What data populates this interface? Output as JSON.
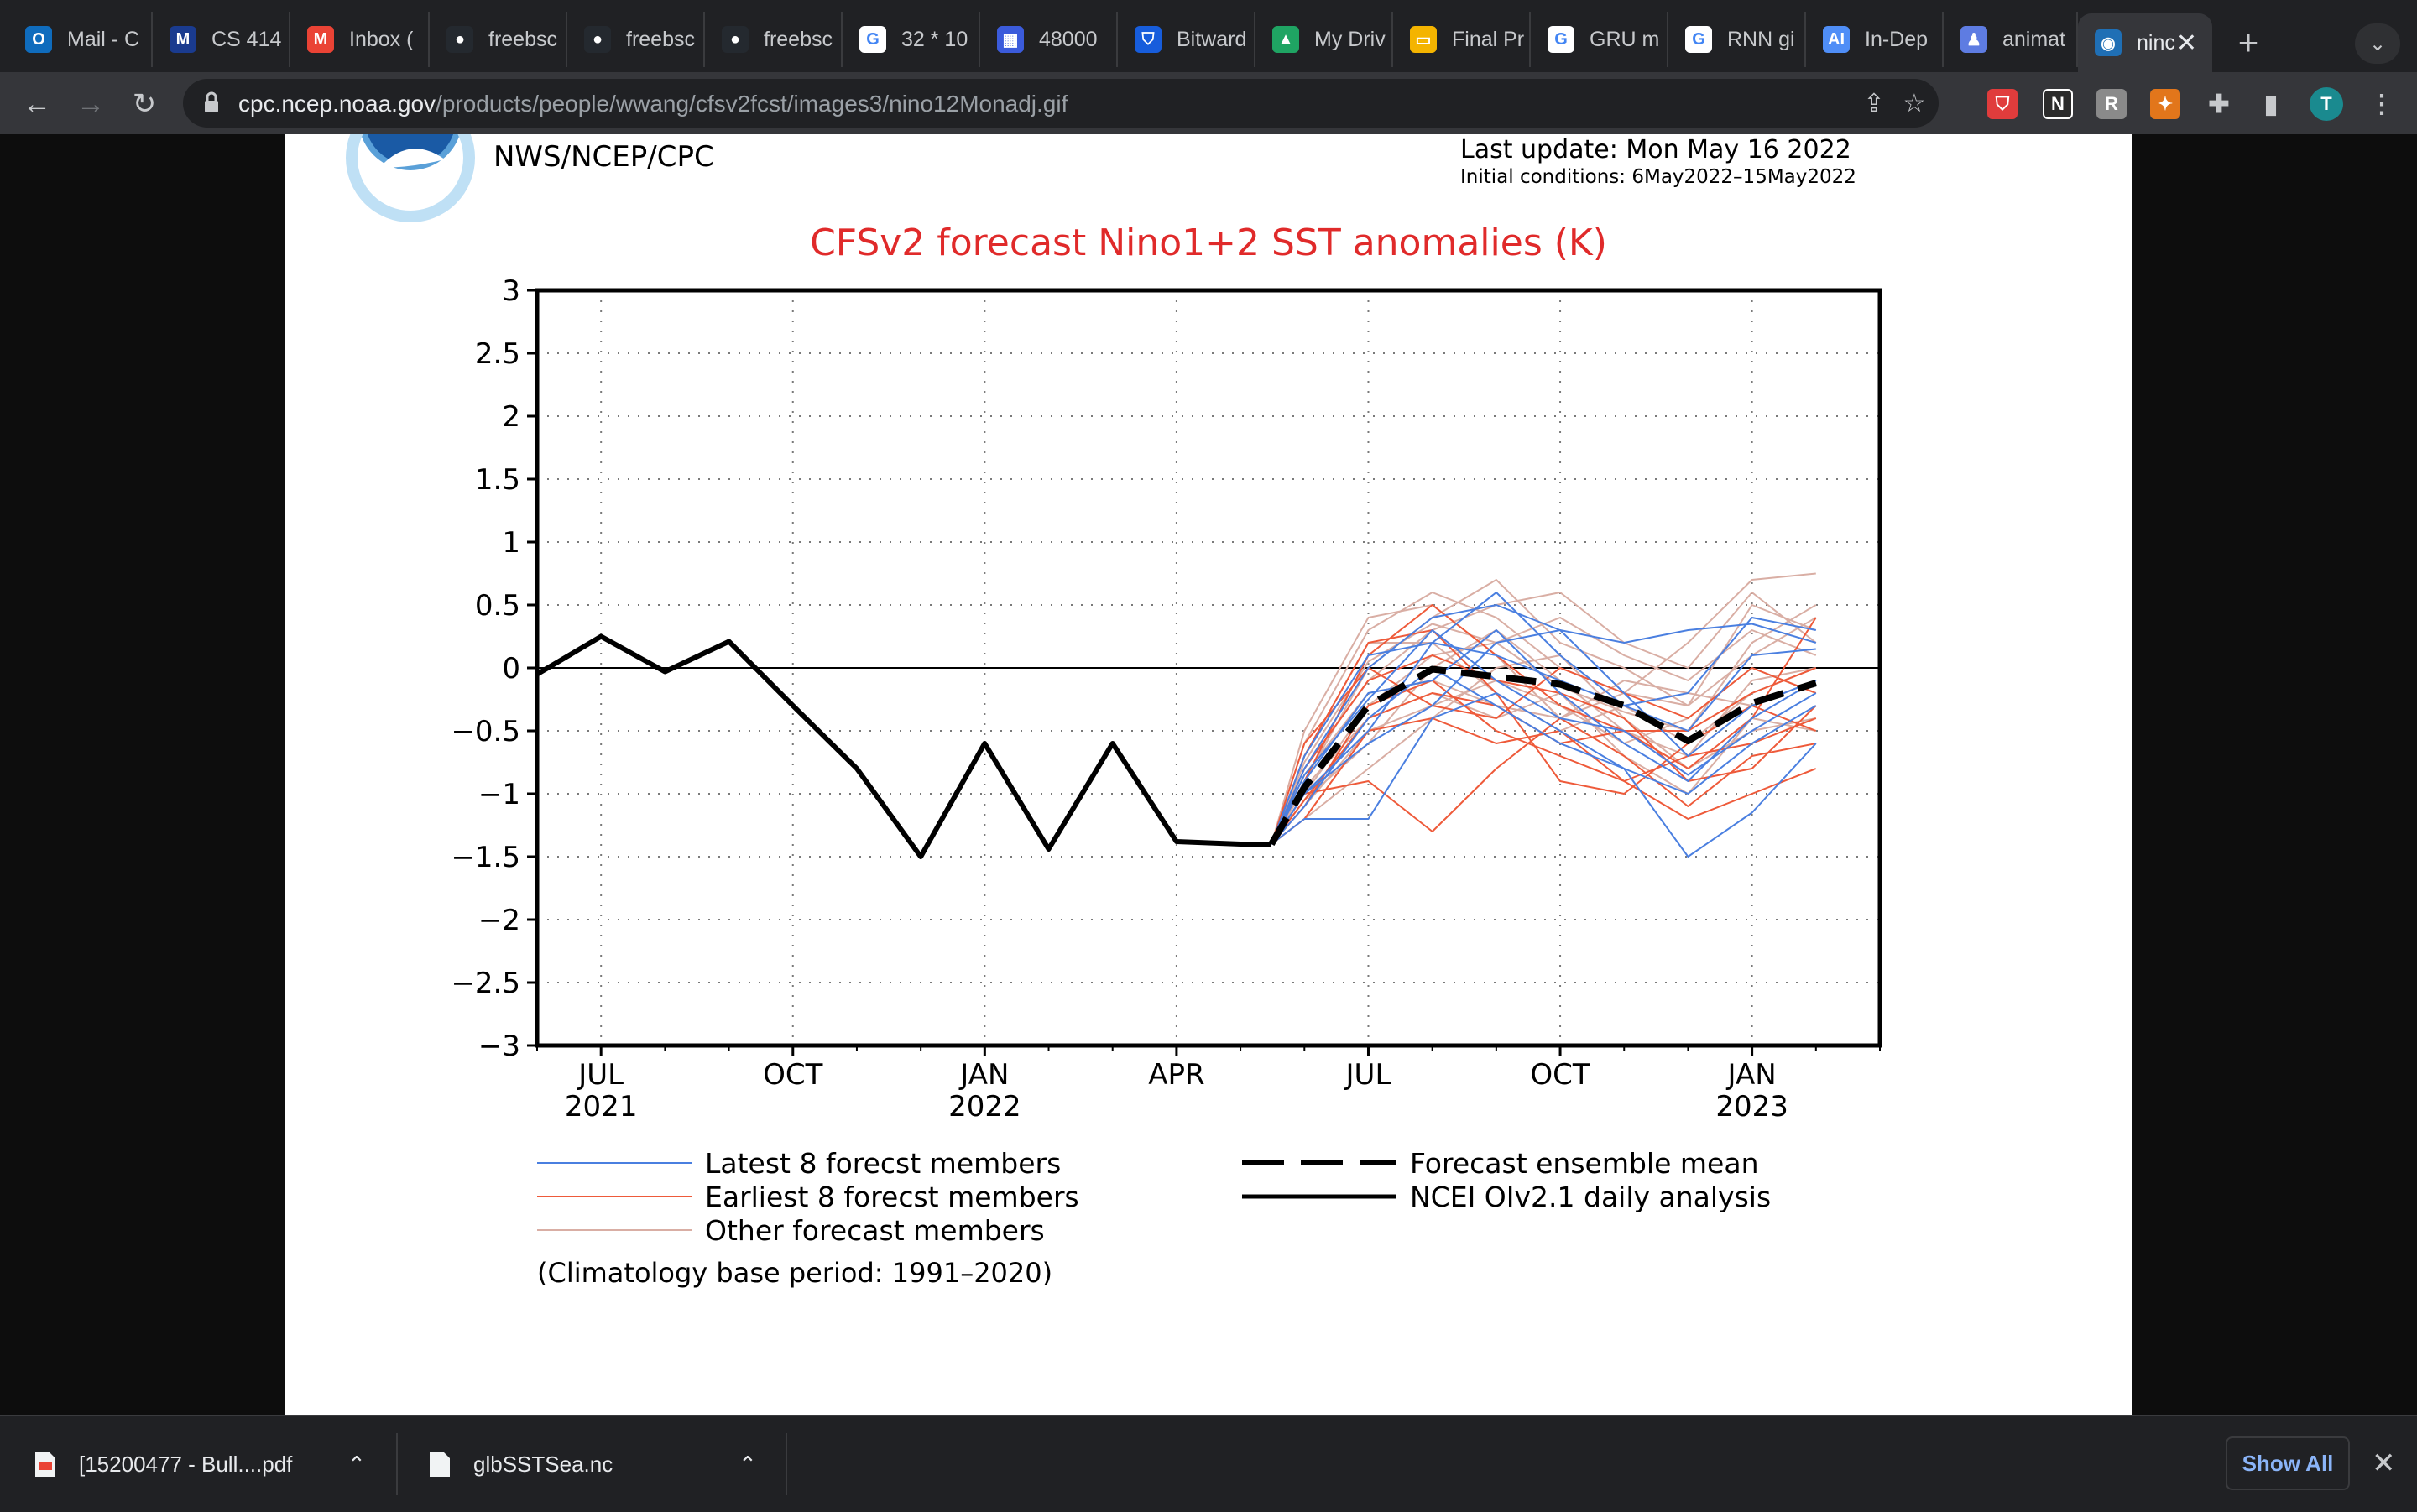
{
  "tabs": [
    {
      "label": "Mail - C",
      "icon": "outlook-icon",
      "color": "#0f6cbd",
      "glyph": "O"
    },
    {
      "label": "CS 414",
      "icon": "mathworks-icon",
      "color": "#1a3b8f",
      "glyph": "M"
    },
    {
      "label": "Inbox (",
      "icon": "gmail-icon",
      "color": "#ea4335",
      "glyph": "M"
    },
    {
      "label": "freebsc",
      "icon": "github-icon",
      "color": "#24292f",
      "glyph": "●"
    },
    {
      "label": "freebsc",
      "icon": "github-icon",
      "color": "#24292f",
      "glyph": "●"
    },
    {
      "label": "freebsc",
      "icon": "github-icon",
      "color": "#24292f",
      "glyph": "●"
    },
    {
      "label": "32 * 10",
      "icon": "google-icon",
      "color": "#ffffff",
      "glyph": "G"
    },
    {
      "label": "48000",
      "icon": "calculator-icon",
      "color": "#3b5bdb",
      "glyph": "▦"
    },
    {
      "label": "Bitward",
      "icon": "bitwarden-icon",
      "color": "#175ddc",
      "glyph": "⛉"
    },
    {
      "label": "My Driv",
      "icon": "google-drive-icon",
      "color": "#1fa463",
      "glyph": "▲"
    },
    {
      "label": "Final Pr",
      "icon": "google-slides-icon",
      "color": "#f4b400",
      "glyph": "▭"
    },
    {
      "label": "GRU m",
      "icon": "google-icon",
      "color": "#ffffff",
      "glyph": "G"
    },
    {
      "label": "RNN gi",
      "icon": "google-icon",
      "color": "#ffffff",
      "glyph": "G"
    },
    {
      "label": "In-Dep",
      "icon": "ai-icon",
      "color": "#4f8ef7",
      "glyph": "AI"
    },
    {
      "label": "animat",
      "icon": "people-icon",
      "color": "#5e7ce2",
      "glyph": "♟"
    },
    {
      "label": "ninc",
      "icon": "noaa-icon",
      "color": "#1f6fb5",
      "glyph": "◉",
      "active": true
    }
  ],
  "address": {
    "host": "cpc.ncep.noaa.gov",
    "path": "/products/people/wwang/cfsv2fcst/images3/nino12Monadj.gif"
  },
  "profile_initial": "T",
  "downloads": [
    {
      "name": "[15200477 - Bull....pdf",
      "icon": "pdf-file-icon"
    },
    {
      "name": "glbSSTSea.nc",
      "icon": "file-icon"
    }
  ],
  "show_all_label": "Show All",
  "figure": {
    "agency": "NWS/NCEP/CPC",
    "last_update": "Last update: Mon May 16 2022",
    "initial_conditions": "Initial conditions: 6May2022–15May2022",
    "footnote": "(Climatology base period: 1991–2020)"
  },
  "chart_data": {
    "type": "line",
    "title": "CFSv2 forecast Nino1+2 SST anomalies (K)",
    "xlabel": "",
    "ylabel": "",
    "ylim": [
      -3,
      3
    ],
    "yticks": [
      3,
      2.5,
      2,
      1.5,
      1,
      0.5,
      0,
      -0.5,
      -1,
      -1.5,
      -2,
      -2.5,
      -3
    ],
    "ytick_labels": [
      "3",
      "2.5",
      "2",
      "1.5",
      "1",
      "0.5",
      "0",
      "−0.5",
      "−1",
      "−1.5",
      "−2",
      "−2.5",
      "−3"
    ],
    "xlim": [
      "2021-06",
      "2023-03"
    ],
    "xticks": [
      {
        "month": "2021-07",
        "label": "JUL",
        "year": "2021"
      },
      {
        "month": "2021-10",
        "label": "OCT",
        "year": ""
      },
      {
        "month": "2022-01",
        "label": "JAN",
        "year": "2022"
      },
      {
        "month": "2022-04",
        "label": "APR",
        "year": ""
      },
      {
        "month": "2022-07",
        "label": "JUL",
        "year": ""
      },
      {
        "month": "2022-10",
        "label": "OCT",
        "year": ""
      },
      {
        "month": "2023-01",
        "label": "JAN",
        "year": "2023"
      }
    ],
    "grid": true,
    "zero_line": true,
    "legend_position": "bottom",
    "legend": [
      {
        "label": "Latest 8 forecst members",
        "color": "#4a7fe0",
        "style": "thin"
      },
      {
        "label": "Earliest 8 forecst members",
        "color": "#ee5a3a",
        "style": "thin"
      },
      {
        "label": "Other forecast members",
        "color": "#d9aea4",
        "style": "thin"
      },
      {
        "label": "Forecast ensemble mean",
        "color": "#000000",
        "style": "dashed"
      },
      {
        "label": "NCEI OIv2.1 daily analysis",
        "color": "#000000",
        "style": "solid"
      }
    ],
    "series": [
      {
        "name": "NCEI OIv2.1 daily analysis",
        "x": [
          "2021-06",
          "2021-07",
          "2021-08",
          "2021-09",
          "2021-10",
          "2021-11",
          "2021-12",
          "2022-01",
          "2022-02",
          "2022-03",
          "2022-04",
          "2022-05",
          "2022-05-16"
        ],
        "y": [
          -0.05,
          0.25,
          -0.03,
          0.21,
          -0.3,
          -0.8,
          -1.5,
          -0.6,
          -1.44,
          -0.6,
          -1.38,
          -1.4,
          -1.4
        ]
      },
      {
        "name": "Forecast ensemble mean",
        "x": [
          "2022-05-16",
          "2022-06",
          "2022-07",
          "2022-08",
          "2022-09",
          "2022-10",
          "2022-11",
          "2022-12",
          "2023-01",
          "2023-02"
        ],
        "y": [
          -1.4,
          -0.95,
          -0.3,
          -0.01,
          -0.07,
          -0.13,
          -0.3,
          -0.58,
          -0.28,
          -0.12
        ]
      },
      {
        "name": "Latest 8 forecst members",
        "x": [
          "2022-05-16",
          "2022-06",
          "2022-07",
          "2022-08",
          "2022-09",
          "2022-10",
          "2022-11",
          "2022-12",
          "2023-01",
          "2023-02"
        ],
        "members": [
          [
            -1.4,
            -0.8,
            0.0,
            0.4,
            0.5,
            0.3,
            0.2,
            0.3,
            0.35,
            0.2
          ],
          [
            -1.4,
            -1.0,
            -0.5,
            0.2,
            0.6,
            0.1,
            -0.3,
            -0.5,
            0.1,
            0.15
          ],
          [
            -1.4,
            -1.2,
            -1.2,
            -0.4,
            -0.2,
            -0.5,
            -0.8,
            -1.5,
            -1.15,
            -0.6
          ],
          [
            -1.4,
            -0.9,
            -0.2,
            -0.1,
            0.3,
            -0.2,
            -0.6,
            -0.9,
            -0.4,
            -0.1
          ],
          [
            -1.4,
            -1.1,
            -0.4,
            0.0,
            -0.3,
            -0.6,
            -0.8,
            -1.0,
            -0.6,
            -0.3
          ],
          [
            -1.4,
            -0.7,
            0.1,
            0.2,
            0.1,
            -0.1,
            -0.3,
            -0.2,
            0.4,
            0.3
          ],
          [
            -1.4,
            -1.0,
            -0.6,
            -0.3,
            0.2,
            0.3,
            -0.2,
            -0.7,
            -0.3,
            -0.1
          ],
          [
            -1.4,
            -0.85,
            -0.25,
            0.3,
            -0.1,
            -0.4,
            -0.5,
            -0.85,
            -0.5,
            -0.2
          ]
        ]
      },
      {
        "name": "Earliest 8 forecst members",
        "x": [
          "2022-05-16",
          "2022-06",
          "2022-07",
          "2022-08",
          "2022-09",
          "2022-10",
          "2022-11",
          "2022-12",
          "2023-01",
          "2023-02"
        ],
        "members": [
          [
            -1.4,
            -0.9,
            0.1,
            0.5,
            0.1,
            -0.3,
            -0.5,
            -0.8,
            -0.4,
            0.4
          ],
          [
            -1.4,
            -1.1,
            -0.3,
            -0.1,
            -0.5,
            -0.7,
            -0.9,
            -1.2,
            -1.0,
            -0.8
          ],
          [
            -1.4,
            -0.7,
            0.2,
            0.3,
            -0.2,
            -0.9,
            -1.0,
            -0.6,
            -0.3,
            -0.5
          ],
          [
            -1.4,
            -1.0,
            -0.9,
            -1.3,
            -0.8,
            -0.4,
            -0.7,
            -1.1,
            -0.7,
            -0.6
          ],
          [
            -1.4,
            -0.6,
            0.0,
            -0.3,
            -0.4,
            0.0,
            -0.2,
            -0.4,
            0.0,
            -0.2
          ],
          [
            -1.4,
            -1.2,
            -0.5,
            -0.4,
            -0.6,
            -0.5,
            -0.9,
            -0.7,
            -0.6,
            -0.4
          ],
          [
            -1.4,
            -0.8,
            -0.1,
            0.1,
            -0.1,
            -0.2,
            -0.4,
            -0.9,
            -0.8,
            -0.3
          ],
          [
            -1.4,
            -1.05,
            -0.4,
            -0.2,
            -0.3,
            -0.6,
            -0.5,
            -0.5,
            -0.2,
            0.0
          ]
        ]
      },
      {
        "name": "Other forecast members",
        "x": [
          "2022-05-16",
          "2022-06",
          "2022-07",
          "2022-08",
          "2022-09",
          "2022-10",
          "2022-11",
          "2022-12",
          "2023-01",
          "2023-02"
        ],
        "members": [
          [
            -1.4,
            -0.6,
            0.3,
            0.6,
            0.4,
            0.0,
            -0.2,
            0.2,
            0.7,
            0.75
          ],
          [
            -1.4,
            -0.9,
            0.0,
            0.4,
            0.7,
            0.2,
            0.0,
            -0.3,
            0.5,
            0.3
          ],
          [
            -1.4,
            -1.0,
            -0.3,
            0.1,
            0.2,
            0.4,
            0.1,
            -0.1,
            0.3,
            0.1
          ],
          [
            -1.4,
            -1.1,
            -0.5,
            -0.3,
            -0.1,
            -0.3,
            -0.6,
            -0.4,
            0.0,
            -0.2
          ],
          [
            -1.4,
            -0.7,
            0.2,
            0.2,
            -0.2,
            -0.5,
            -0.3,
            -0.6,
            -0.2,
            0.0
          ],
          [
            -1.4,
            -1.2,
            -0.8,
            -0.4,
            0.0,
            0.1,
            -0.4,
            -0.8,
            -0.5,
            -0.4
          ],
          [
            -1.4,
            -0.8,
            -0.1,
            0.3,
            0.5,
            0.6,
            0.2,
            0.0,
            0.6,
            0.2
          ],
          [
            -1.4,
            -0.95,
            -0.4,
            -0.2,
            -0.4,
            -0.2,
            -0.7,
            -1.0,
            -0.4,
            -0.5
          ],
          [
            -1.4,
            -0.5,
            0.4,
            0.5,
            0.1,
            -0.4,
            -0.2,
            -0.3,
            0.1,
            0.4
          ],
          [
            -1.4,
            -1.05,
            -0.6,
            0.0,
            0.3,
            -0.1,
            -0.5,
            -0.7,
            -0.1,
            0.0
          ],
          [
            -1.4,
            -0.75,
            0.05,
            0.35,
            0.2,
            -0.15,
            -0.35,
            -0.5,
            0.2,
            0.5
          ],
          [
            -1.4,
            -0.85,
            -0.2,
            -0.1,
            -0.3,
            -0.4,
            -0.1,
            -0.2,
            -0.3,
            -0.1
          ]
        ]
      }
    ]
  }
}
